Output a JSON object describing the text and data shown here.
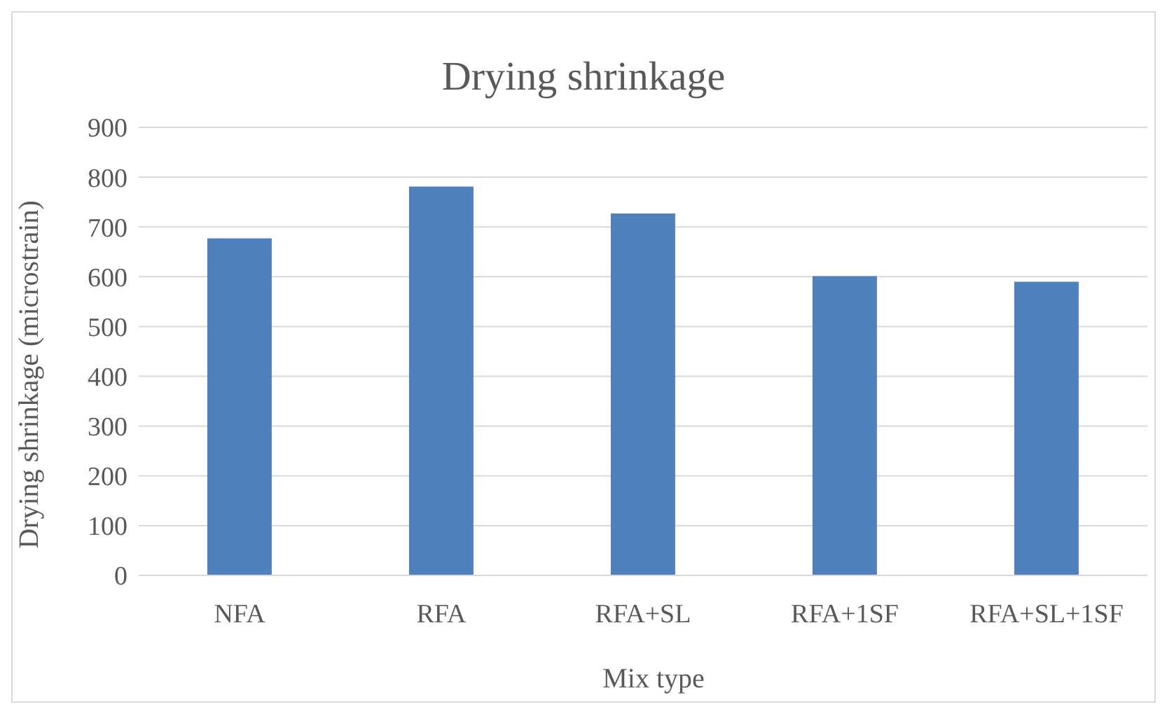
{
  "chart_data": {
    "type": "bar",
    "title": "Drying shrinkage",
    "xlabel": "Mix type",
    "ylabel": "Drying shrinkage (microstrain)",
    "categories": [
      "NFA",
      "RFA",
      "RFA+SL",
      "RFA+1SF",
      "RFA+SL+1SF"
    ],
    "values": [
      677,
      781,
      727,
      601,
      590
    ],
    "color": "#4f81bd",
    "ylim": [
      0,
      900
    ],
    "yticks": [
      0,
      100,
      200,
      300,
      400,
      500,
      600,
      700,
      800,
      900
    ],
    "grid": "y",
    "legend": false
  }
}
